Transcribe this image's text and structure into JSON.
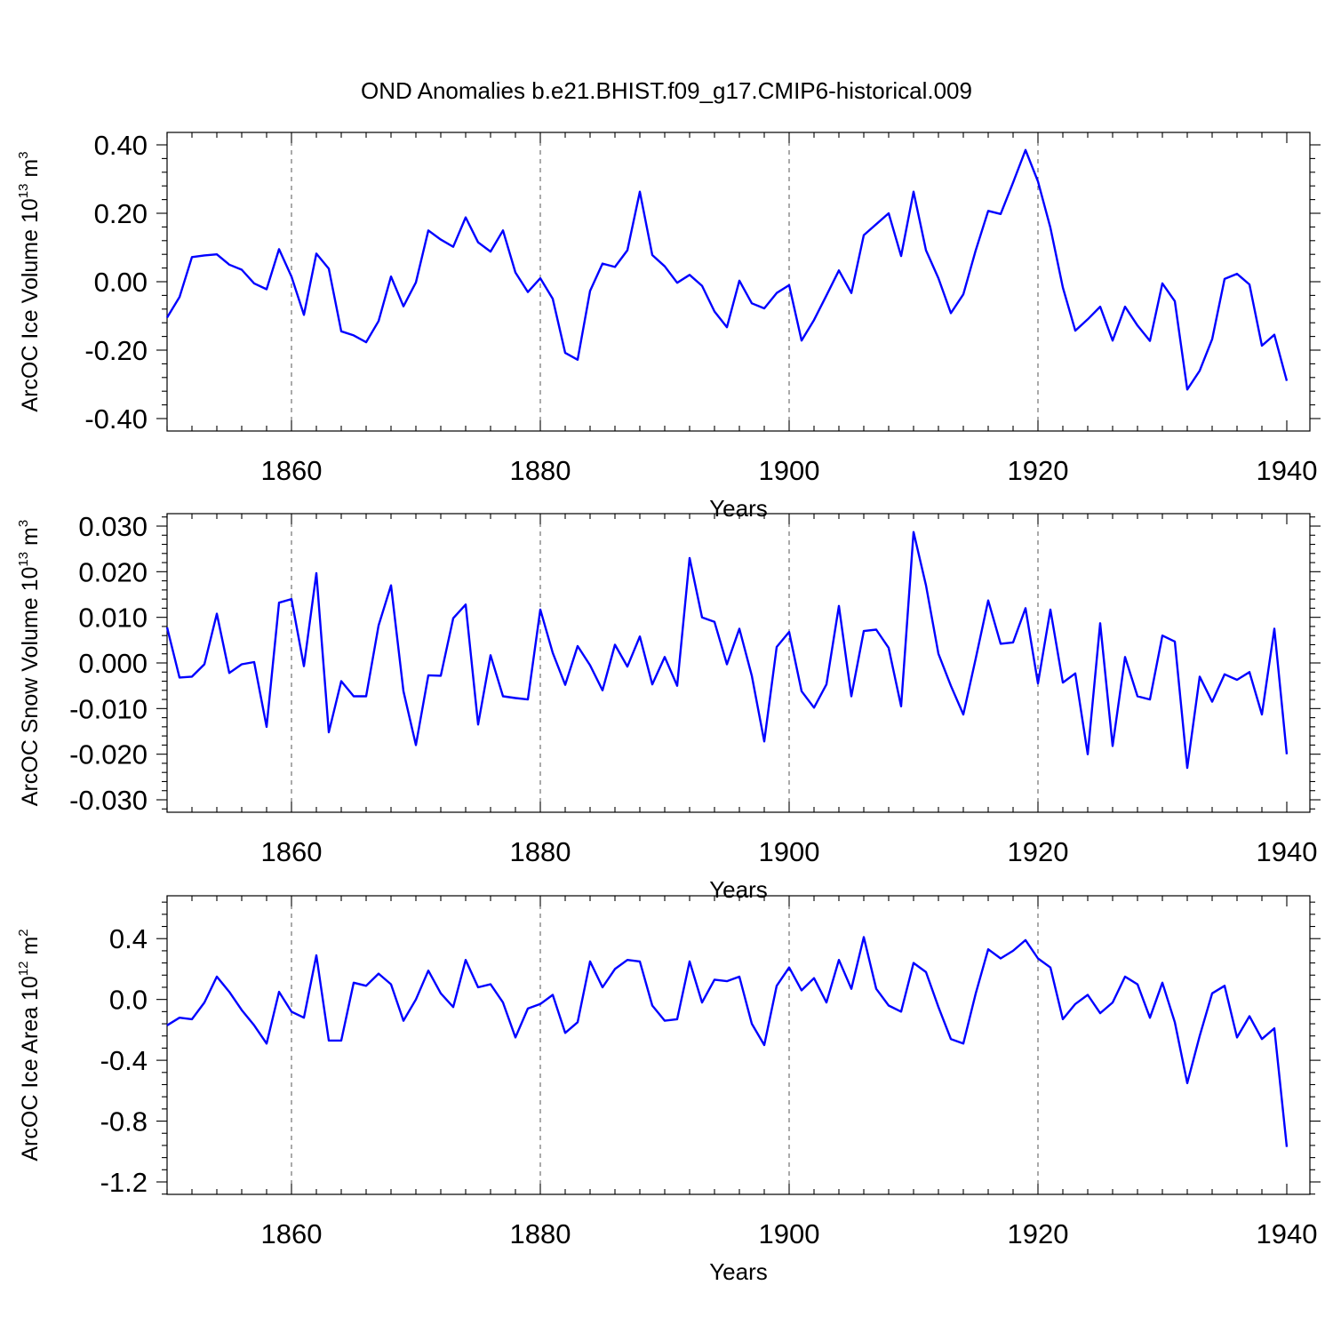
{
  "title": "OND Anomalies b.e21.BHIST.f09_g17.CMIP6-historical.009",
  "chart_data": [
    {
      "type": "line",
      "panel": "ice-volume",
      "xlabel": "Years",
      "ylabel": {
        "text": "ArcOC Ice Volume 10",
        "sup": "13",
        "unit": " m",
        "unit_sup": "3"
      },
      "xlim": [
        1850,
        1940
      ],
      "ylim": [
        -0.4,
        0.4
      ],
      "xticks": [
        1860,
        1880,
        1900,
        1920,
        1940
      ],
      "yticks": [
        -0.4,
        -0.2,
        0.0,
        0.2,
        0.4
      ],
      "ytick_labels": [
        "-0.40",
        "-0.20",
        "0.00",
        "0.20",
        "0.40"
      ],
      "x_start": 1850,
      "values": [
        -0.105,
        -0.045,
        0.072,
        0.077,
        0.08,
        0.05,
        0.035,
        -0.005,
        -0.022,
        0.095,
        0.015,
        -0.097,
        0.082,
        0.038,
        -0.145,
        -0.157,
        -0.177,
        -0.115,
        0.015,
        -0.072,
        -0.002,
        0.15,
        0.123,
        0.102,
        0.188,
        0.115,
        0.088,
        0.15,
        0.027,
        -0.03,
        0.01,
        -0.05,
        -0.208,
        -0.228,
        -0.027,
        0.053,
        0.043,
        0.092,
        0.263,
        0.078,
        0.045,
        -0.003,
        0.02,
        -0.012,
        -0.087,
        -0.133,
        0.003,
        -0.063,
        -0.078,
        -0.033,
        -0.01,
        -0.172,
        -0.112,
        -0.04,
        0.033,
        -0.033,
        0.136,
        0.168,
        0.2,
        0.075,
        0.263,
        0.092,
        0.01,
        -0.092,
        -0.037,
        0.092,
        0.207,
        0.198,
        0.29,
        0.385,
        0.293,
        0.158,
        -0.017,
        -0.143,
        -0.11,
        -0.073,
        -0.172,
        -0.073,
        -0.128,
        -0.173,
        -0.005,
        -0.057,
        -0.315,
        -0.26,
        -0.168,
        0.008,
        0.023,
        -0.008,
        -0.187,
        -0.155,
        -0.29
      ],
      "color": "#0000ff"
    },
    {
      "type": "line",
      "panel": "snow-volume",
      "xlabel": "Years",
      "ylabel": {
        "text": "ArcOC Snow Volume 10",
        "sup": "13",
        "unit": " m",
        "unit_sup": "3"
      },
      "xlim": [
        1850,
        1940
      ],
      "ylim": [
        -0.03,
        0.03
      ],
      "xticks": [
        1860,
        1880,
        1900,
        1920,
        1940
      ],
      "yticks": [
        -0.03,
        -0.02,
        -0.01,
        0.0,
        0.01,
        0.02,
        0.03
      ],
      "ytick_labels": [
        "-0.030",
        "-0.020",
        "-0.010",
        "0.000",
        "0.010",
        "0.020",
        "0.030"
      ],
      "x_start": 1850,
      "values": [
        0.0078,
        -0.0032,
        -0.003,
        -0.0003,
        0.0108,
        -0.0022,
        -0.0003,
        0.0002,
        -0.014,
        0.0132,
        0.014,
        -0.0007,
        0.0197,
        -0.0152,
        -0.004,
        -0.0073,
        -0.0073,
        0.0082,
        0.017,
        -0.0062,
        -0.018,
        -0.0027,
        -0.0028,
        0.0098,
        0.0128,
        -0.0135,
        0.0017,
        -0.0073,
        -0.0077,
        -0.008,
        0.0117,
        0.0022,
        -0.0048,
        0.0037,
        -0.0005,
        -0.006,
        0.004,
        -0.0008,
        0.0058,
        -0.0047,
        0.0013,
        -0.005,
        0.023,
        0.01,
        0.009,
        -0.0003,
        0.0075,
        -0.0028,
        -0.0172,
        0.0035,
        0.0068,
        -0.0062,
        -0.0098,
        -0.0047,
        0.0125,
        -0.0073,
        0.007,
        0.0073,
        0.0033,
        -0.0095,
        0.0287,
        0.017,
        0.002,
        -0.005,
        -0.0113,
        0.001,
        0.0137,
        0.0042,
        0.0045,
        0.012,
        -0.0045,
        0.0117,
        -0.0043,
        -0.0023,
        -0.02,
        0.0087,
        -0.0182,
        0.0013,
        -0.0073,
        -0.008,
        0.006,
        0.0047,
        -0.023,
        -0.003,
        -0.0085,
        -0.0025,
        -0.0037,
        -0.002,
        -0.0113,
        0.0075,
        -0.02
      ],
      "color": "#0000ff"
    },
    {
      "type": "line",
      "panel": "ice-area",
      "xlabel": "Years",
      "ylabel": {
        "text": "ArcOC Ice Area 10",
        "sup": "12",
        "unit": " m",
        "unit_sup": "2"
      },
      "xlim": [
        1850,
        1940
      ],
      "ylim": [
        -1.2,
        0.6
      ],
      "xticks": [
        1860,
        1880,
        1900,
        1920,
        1940
      ],
      "yticks": [
        -1.2,
        -0.8,
        -0.4,
        0.0,
        0.4
      ],
      "ytick_labels": [
        "-1.2",
        "-0.8",
        "-0.4",
        "0.0",
        "0.4"
      ],
      "x_start": 1850,
      "values": [
        -0.17,
        -0.12,
        -0.13,
        -0.02,
        0.15,
        0.05,
        -0.07,
        -0.17,
        -0.29,
        0.05,
        -0.08,
        -0.12,
        0.29,
        -0.27,
        -0.27,
        0.11,
        0.09,
        0.17,
        0.1,
        -0.14,
        0.0,
        0.19,
        0.04,
        -0.05,
        0.26,
        0.08,
        0.1,
        -0.02,
        -0.25,
        -0.06,
        -0.03,
        0.03,
        -0.22,
        -0.15,
        0.25,
        0.08,
        0.2,
        0.26,
        0.25,
        -0.04,
        -0.14,
        -0.13,
        0.25,
        -0.02,
        0.13,
        0.12,
        0.15,
        -0.16,
        -0.3,
        0.09,
        0.21,
        0.06,
        0.14,
        -0.02,
        0.26,
        0.07,
        0.41,
        0.07,
        -0.04,
        -0.08,
        0.24,
        0.18,
        -0.05,
        -0.26,
        -0.29,
        0.04,
        0.33,
        0.27,
        0.32,
        0.39,
        0.27,
        0.21,
        -0.13,
        -0.03,
        0.03,
        -0.09,
        -0.02,
        0.15,
        0.1,
        -0.12,
        0.11,
        -0.15,
        -0.55,
        -0.24,
        0.04,
        0.09,
        -0.25,
        -0.11,
        -0.26,
        -0.19,
        -0.97
      ],
      "color": "#0000ff"
    }
  ]
}
